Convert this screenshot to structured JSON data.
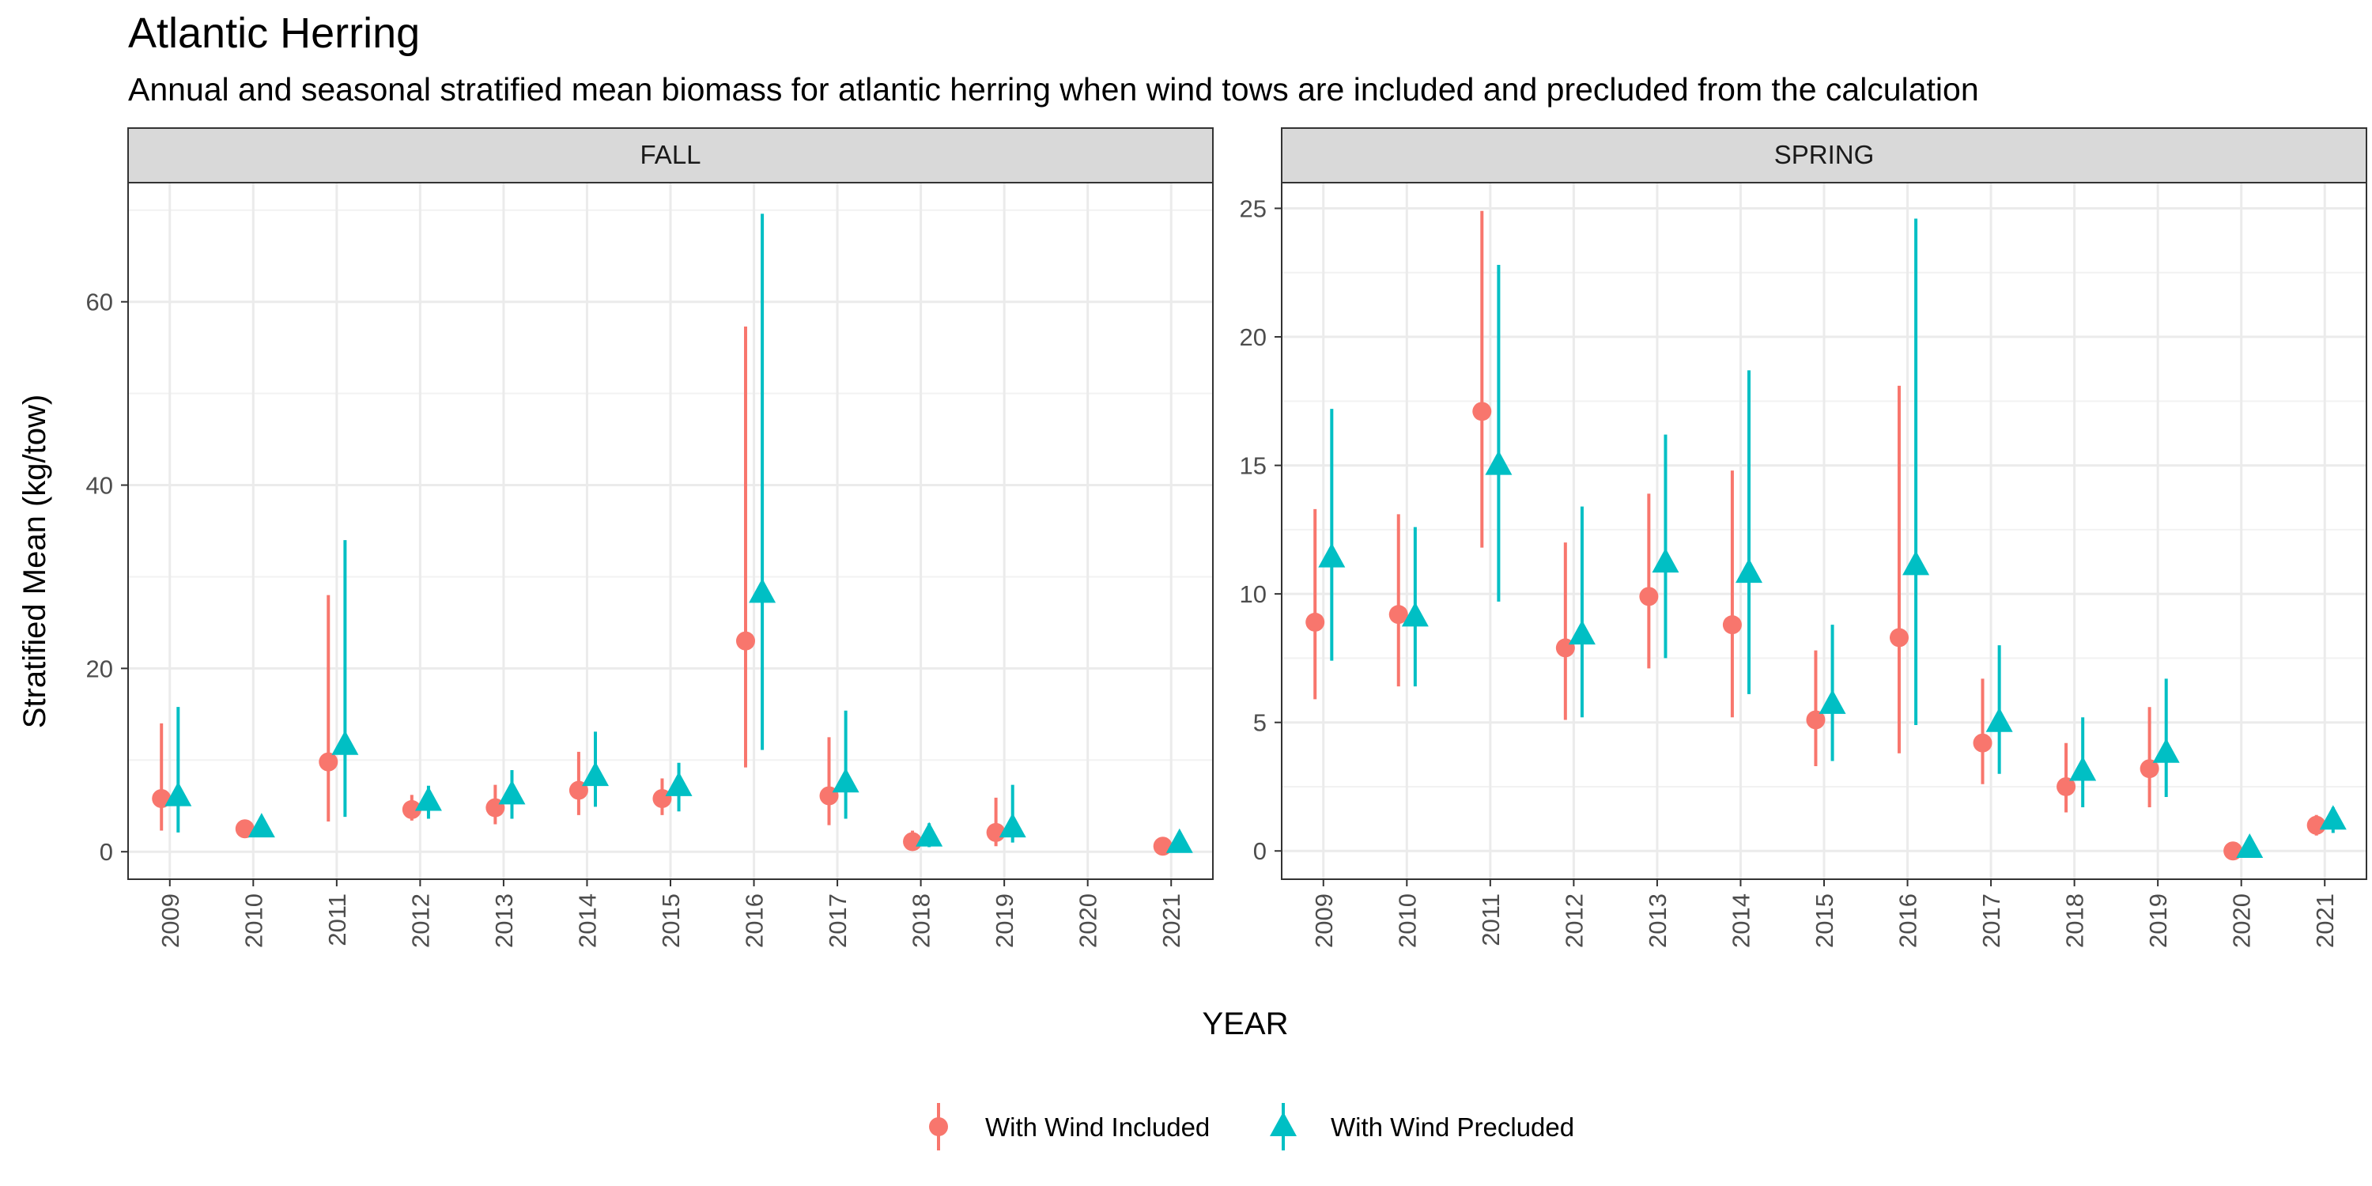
{
  "chart_data": {
    "type": "scatter",
    "title": "Atlantic Herring",
    "subtitle": "Annual and seasonal stratified mean biomass for atlantic herring when wind tows are included and precluded from the calculation",
    "xlabel": "YEAR",
    "ylabel": "Stratified Mean (kg/tow)",
    "legend_position": "bottom",
    "grid": true,
    "series_styles": [
      {
        "name": "With Wind Included",
        "color": "#F8766D",
        "shape": "circle"
      },
      {
        "name": "With Wind Precluded",
        "color": "#00BFC4",
        "shape": "triangle"
      }
    ],
    "panels": [
      {
        "strip": "FALL",
        "categories": [
          "2009",
          "2010",
          "2011",
          "2012",
          "2013",
          "2014",
          "2015",
          "2016",
          "2017",
          "2018",
          "2019",
          "2020",
          "2021"
        ],
        "ylim": [
          -3,
          73
        ],
        "yticks": [
          0,
          20,
          40,
          60
        ],
        "series": [
          {
            "name": "With Wind Included",
            "values": [
              5.8,
              2.5,
              9.8,
              4.6,
              4.8,
              6.7,
              5.8,
              23.0,
              6.1,
              1.1,
              2.1,
              null,
              0.6
            ],
            "lower": [
              2.3,
              2.0,
              3.3,
              3.4,
              3.0,
              4.0,
              4.0,
              9.2,
              2.9,
              0.3,
              0.6,
              null,
              0.3
            ],
            "upper": [
              14.0,
              3.0,
              28.0,
              6.2,
              7.3,
              10.9,
              8.0,
              57.3,
              12.5,
              2.3,
              5.9,
              null,
              0.9
            ]
          },
          {
            "name": "With Wind Precluded",
            "values": [
              6.0,
              2.6,
              11.6,
              5.5,
              6.2,
              8.2,
              7.1,
              28.2,
              7.5,
              1.6,
              2.6,
              null,
              0.9
            ],
            "lower": [
              2.1,
              1.9,
              3.8,
              3.6,
              3.6,
              4.9,
              4.4,
              11.1,
              3.6,
              0.5,
              1.0,
              null,
              0.5
            ],
            "upper": [
              15.8,
              3.1,
              34.0,
              7.2,
              8.9,
              13.1,
              9.7,
              69.6,
              15.4,
              3.1,
              7.3,
              null,
              1.3
            ]
          }
        ]
      },
      {
        "strip": "SPRING",
        "categories": [
          "2009",
          "2010",
          "2011",
          "2012",
          "2013",
          "2014",
          "2015",
          "2016",
          "2017",
          "2018",
          "2019",
          "2020",
          "2021"
        ],
        "ylim": [
          -1.1,
          26.0
        ],
        "yticks": [
          0,
          5,
          10,
          15,
          20,
          25
        ],
        "series": [
          {
            "name": "With Wind Included",
            "values": [
              8.9,
              9.2,
              17.1,
              7.9,
              9.9,
              8.8,
              5.1,
              8.3,
              4.2,
              2.5,
              3.2,
              0.0,
              1.0
            ],
            "lower": [
              5.9,
              6.4,
              11.8,
              5.1,
              7.1,
              5.2,
              3.3,
              3.8,
              2.6,
              1.5,
              1.7,
              0.0,
              0.6
            ],
            "upper": [
              13.3,
              13.1,
              24.9,
              12.0,
              13.9,
              14.8,
              7.8,
              18.1,
              6.7,
              4.2,
              5.6,
              0.0,
              1.4
            ]
          },
          {
            "name": "With Wind Precluded",
            "values": [
              11.4,
              9.1,
              15.0,
              8.4,
              11.2,
              10.8,
              5.7,
              11.1,
              5.0,
              3.1,
              3.8,
              0.1,
              1.2
            ],
            "lower": [
              7.4,
              6.4,
              9.7,
              5.2,
              7.5,
              6.1,
              3.5,
              4.9,
              3.0,
              1.7,
              2.1,
              0.0,
              0.7
            ],
            "upper": [
              17.2,
              12.6,
              22.8,
              13.4,
              16.2,
              18.7,
              8.8,
              24.6,
              8.0,
              5.2,
              6.7,
              0.1,
              1.7
            ]
          }
        ]
      }
    ]
  }
}
